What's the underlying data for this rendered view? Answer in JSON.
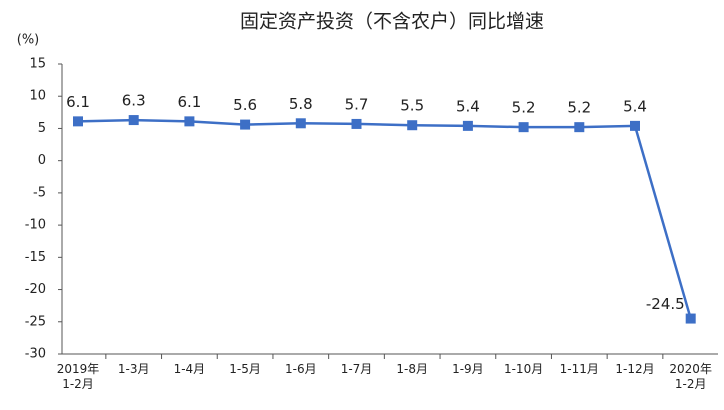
{
  "chart_data": {
    "type": "line",
    "title": "固定资产投资（不含农户）同比增速",
    "y_label": "(%)",
    "categories": [
      "2019年\n1-2月",
      "1-3月",
      "1-4月",
      "1-5月",
      "1-6月",
      "1-7月",
      "1-8月",
      "1-9月",
      "1-10月",
      "1-11月",
      "1-12月",
      "2020年\n1-2月"
    ],
    "values": [
      6.1,
      6.3,
      6.1,
      5.6,
      5.8,
      5.7,
      5.5,
      5.4,
      5.2,
      5.2,
      5.4,
      -24.5
    ],
    "color": "#3d6fc6",
    "ylim": [
      -30,
      15
    ],
    "yticks": [
      15,
      10,
      5,
      0,
      -5,
      -10,
      -15,
      -20,
      -25,
      -30
    ],
    "grid": false
  }
}
